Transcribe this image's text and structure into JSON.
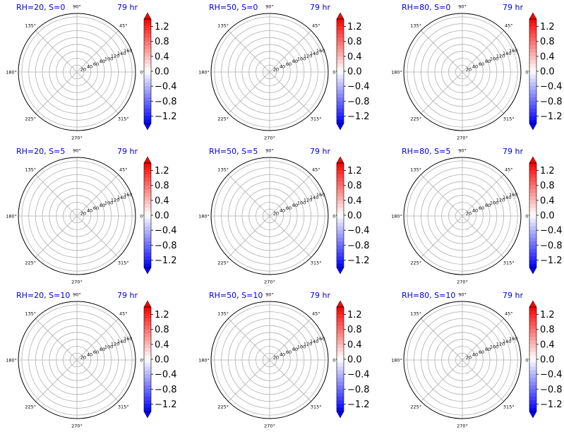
{
  "colors": {
    "cmap_min": "#0000ff",
    "cmap_mid": "#ffffff",
    "cmap_max": "#ff0000",
    "title_left": "#0000cc",
    "title_right": "#0000cc",
    "grid": "#b0b0b0"
  },
  "chart_data": [
    {
      "type": "heatmap",
      "projection": "polar",
      "title_left": "RH=20, S=0",
      "title_right": "79 hr",
      "angle_ticks": [
        "0°",
        "45°",
        "90°",
        "135°",
        "180°",
        "225°",
        "270°",
        "315°"
      ],
      "radial_ticks": [
        "20",
        "40",
        "60",
        "80",
        "100",
        "120",
        "140",
        "160"
      ],
      "rlim": [
        0,
        170
      ],
      "grid": true,
      "colorbar": {
        "ticks": [
          "1.2",
          "0.8",
          "0.4",
          "0.0",
          "−0.4",
          "−0.8",
          "−1.2"
        ],
        "vmin": -1.4,
        "vmax": 1.4,
        "extend": "both",
        "cmap": "bwr"
      }
    },
    {
      "type": "heatmap",
      "projection": "polar",
      "title_left": "RH=50, S=0",
      "title_right": "79 hr",
      "angle_ticks": [
        "0°",
        "45°",
        "90°",
        "135°",
        "180°",
        "225°",
        "270°",
        "315°"
      ],
      "radial_ticks": [
        "20",
        "40",
        "60",
        "80",
        "100",
        "120",
        "140",
        "160"
      ],
      "rlim": [
        0,
        170
      ],
      "grid": true,
      "colorbar": {
        "ticks": [
          "1.2",
          "0.8",
          "0.4",
          "0.0",
          "−0.4",
          "−0.8",
          "−1.2"
        ],
        "vmin": -1.4,
        "vmax": 1.4,
        "extend": "both",
        "cmap": "bwr"
      }
    },
    {
      "type": "heatmap",
      "projection": "polar",
      "title_left": "RH=80, S=0",
      "title_right": "79 hr",
      "angle_ticks": [
        "0°",
        "45°",
        "90°",
        "135°",
        "180°",
        "225°",
        "270°",
        "315°"
      ],
      "radial_ticks": [
        "20",
        "40",
        "60",
        "80",
        "100",
        "120",
        "140",
        "160"
      ],
      "rlim": [
        0,
        170
      ],
      "grid": true,
      "colorbar": {
        "ticks": [
          "1.2",
          "0.8",
          "0.4",
          "0.0",
          "−0.4",
          "−0.8",
          "−1.2"
        ],
        "vmin": -1.4,
        "vmax": 1.4,
        "extend": "both",
        "cmap": "bwr"
      }
    },
    {
      "type": "heatmap",
      "projection": "polar",
      "title_left": "RH=20, S=5",
      "title_right": "79 hr",
      "angle_ticks": [
        "0°",
        "45°",
        "90°",
        "135°",
        "180°",
        "225°",
        "270°",
        "315°"
      ],
      "radial_ticks": [
        "20",
        "40",
        "60",
        "80",
        "100",
        "120",
        "140",
        "160"
      ],
      "rlim": [
        0,
        170
      ],
      "grid": true,
      "colorbar": {
        "ticks": [
          "1.2",
          "0.8",
          "0.4",
          "0.0",
          "−0.4",
          "−0.8",
          "−1.2"
        ],
        "vmin": -1.4,
        "vmax": 1.4,
        "extend": "both",
        "cmap": "bwr"
      }
    },
    {
      "type": "heatmap",
      "projection": "polar",
      "title_left": "RH=50, S=5",
      "title_right": "79 hr",
      "angle_ticks": [
        "0°",
        "45°",
        "90°",
        "135°",
        "180°",
        "225°",
        "270°",
        "315°"
      ],
      "radial_ticks": [
        "20",
        "40",
        "60",
        "80",
        "100",
        "120",
        "140",
        "160"
      ],
      "rlim": [
        0,
        170
      ],
      "grid": true,
      "colorbar": {
        "ticks": [
          "1.2",
          "0.8",
          "0.4",
          "0.0",
          "−0.4",
          "−0.8",
          "−1.2"
        ],
        "vmin": -1.4,
        "vmax": 1.4,
        "extend": "both",
        "cmap": "bwr"
      }
    },
    {
      "type": "heatmap",
      "projection": "polar",
      "title_left": "RH=80, S=5",
      "title_right": "79 hr",
      "angle_ticks": [
        "0°",
        "45°",
        "90°",
        "135°",
        "180°",
        "225°",
        "270°",
        "315°"
      ],
      "radial_ticks": [
        "20",
        "40",
        "60",
        "80",
        "100",
        "120",
        "140",
        "160"
      ],
      "rlim": [
        0,
        170
      ],
      "grid": true,
      "colorbar": {
        "ticks": [
          "1.2",
          "0.8",
          "0.4",
          "0.0",
          "−0.4",
          "−0.8",
          "−1.2"
        ],
        "vmin": -1.4,
        "vmax": 1.4,
        "extend": "both",
        "cmap": "bwr"
      }
    },
    {
      "type": "heatmap",
      "projection": "polar",
      "title_left": "RH=20, S=10",
      "title_right": "79 hr",
      "angle_ticks": [
        "0°",
        "45°",
        "90°",
        "135°",
        "180°",
        "225°",
        "270°",
        "315°"
      ],
      "radial_ticks": [
        "20",
        "40",
        "60",
        "80",
        "100",
        "120",
        "140",
        "160"
      ],
      "rlim": [
        0,
        170
      ],
      "grid": true,
      "colorbar": {
        "ticks": [
          "1.2",
          "0.8",
          "0.4",
          "0.0",
          "−0.4",
          "−0.8",
          "−1.2"
        ],
        "vmin": -1.4,
        "vmax": 1.4,
        "extend": "both",
        "cmap": "bwr"
      }
    },
    {
      "type": "heatmap",
      "projection": "polar",
      "title_left": "RH=50, S=10",
      "title_right": "79 hr",
      "angle_ticks": [
        "0°",
        "45°",
        "90°",
        "135°",
        "180°",
        "225°",
        "270°",
        "315°"
      ],
      "radial_ticks": [
        "20",
        "40",
        "60",
        "80",
        "100",
        "120",
        "140",
        "160"
      ],
      "rlim": [
        0,
        170
      ],
      "grid": true,
      "colorbar": {
        "ticks": [
          "1.2",
          "0.8",
          "0.4",
          "0.0",
          "−0.4",
          "−0.8",
          "−1.2"
        ],
        "vmin": -1.4,
        "vmax": 1.4,
        "extend": "both",
        "cmap": "bwr"
      }
    },
    {
      "type": "heatmap",
      "projection": "polar",
      "title_left": "RH=80, S=10",
      "title_right": "79 hr",
      "angle_ticks": [
        "0°",
        "45°",
        "90°",
        "135°",
        "180°",
        "225°",
        "270°",
        "315°"
      ],
      "radial_ticks": [
        "20",
        "40",
        "60",
        "80",
        "100",
        "120",
        "140",
        "160"
      ],
      "rlim": [
        0,
        170
      ],
      "grid": true,
      "colorbar": {
        "ticks": [
          "1.2",
          "0.8",
          "0.4",
          "0.0",
          "−0.4",
          "−0.8",
          "−1.2"
        ],
        "vmin": -1.4,
        "vmax": 1.4,
        "extend": "both",
        "cmap": "bwr"
      }
    }
  ]
}
